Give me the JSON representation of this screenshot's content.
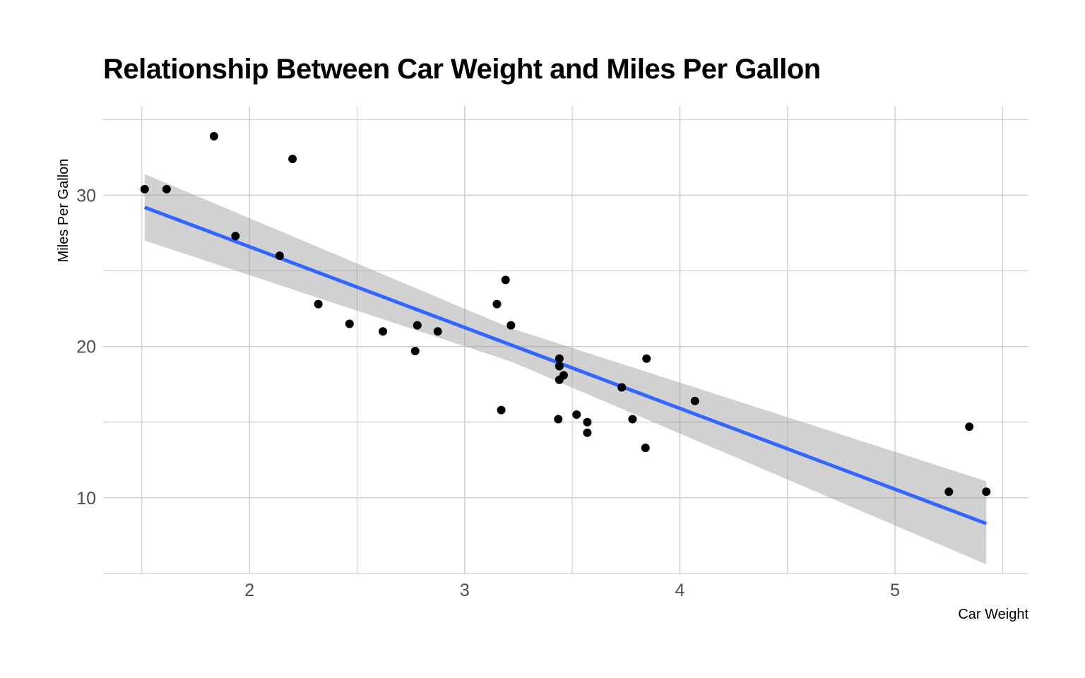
{
  "chart_data": {
    "type": "scatter",
    "title": "Relationship Between Car Weight and Miles Per Gallon",
    "xlabel": "Car Weight",
    "ylabel": "Miles Per Gallon",
    "xlim": [
      1.32,
      5.62
    ],
    "ylim": [
      5.0,
      35.9
    ],
    "x_major_ticks": [
      2,
      3,
      4,
      5
    ],
    "x_minor_ticks": [
      1.5,
      2.5,
      3.5,
      4.5,
      5.5
    ],
    "y_major_ticks": [
      10,
      20,
      30
    ],
    "y_minor_ticks": [
      5,
      15,
      25,
      35
    ],
    "x_tick_labels": [
      "2",
      "3",
      "4",
      "5"
    ],
    "y_tick_labels": [
      "10",
      "20",
      "30"
    ],
    "grid": true,
    "colors": {
      "points": "#000000",
      "fit_line": "#3366FF",
      "confidence_band": "#999999",
      "grid": "#d0d0d0"
    },
    "points": [
      {
        "x": 1.513,
        "y": 30.4
      },
      {
        "x": 1.615,
        "y": 30.4
      },
      {
        "x": 1.835,
        "y": 33.9
      },
      {
        "x": 1.935,
        "y": 27.3
      },
      {
        "x": 2.14,
        "y": 26.0
      },
      {
        "x": 2.2,
        "y": 32.4
      },
      {
        "x": 2.32,
        "y": 22.8
      },
      {
        "x": 2.465,
        "y": 21.5
      },
      {
        "x": 2.62,
        "y": 21.0
      },
      {
        "x": 2.77,
        "y": 19.7
      },
      {
        "x": 2.78,
        "y": 21.4
      },
      {
        "x": 2.875,
        "y": 21.0
      },
      {
        "x": 3.15,
        "y": 22.8
      },
      {
        "x": 3.17,
        "y": 15.8
      },
      {
        "x": 3.19,
        "y": 24.4
      },
      {
        "x": 3.215,
        "y": 21.4
      },
      {
        "x": 3.435,
        "y": 15.2
      },
      {
        "x": 3.44,
        "y": 18.7
      },
      {
        "x": 3.44,
        "y": 19.2
      },
      {
        "x": 3.44,
        "y": 17.8
      },
      {
        "x": 3.46,
        "y": 18.1
      },
      {
        "x": 3.52,
        "y": 15.5
      },
      {
        "x": 3.57,
        "y": 15.0
      },
      {
        "x": 3.57,
        "y": 14.3
      },
      {
        "x": 3.73,
        "y": 17.3
      },
      {
        "x": 3.78,
        "y": 15.2
      },
      {
        "x": 3.84,
        "y": 13.3
      },
      {
        "x": 3.845,
        "y": 19.2
      },
      {
        "x": 4.07,
        "y": 16.4
      },
      {
        "x": 5.25,
        "y": 10.4
      },
      {
        "x": 5.345,
        "y": 14.7
      },
      {
        "x": 5.424,
        "y": 10.4
      }
    ],
    "fit_line": {
      "method": "linear",
      "x": [
        1.513,
        5.424
      ],
      "y": [
        29.2,
        8.3
      ]
    },
    "confidence_band": {
      "x": [
        1.513,
        3.217,
        5.424
      ],
      "lower": [
        27.0,
        19.0,
        5.6
      ],
      "upper": [
        31.4,
        21.2,
        11.1
      ]
    }
  }
}
